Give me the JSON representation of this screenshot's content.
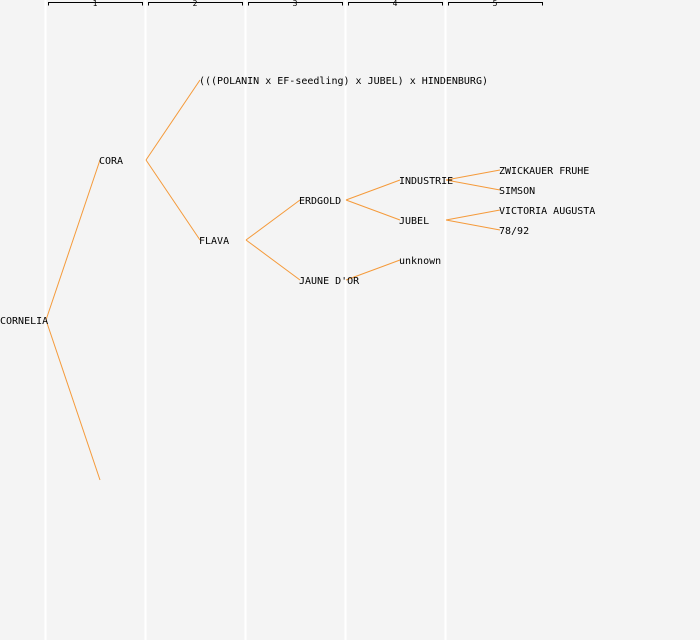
{
  "generations": [
    "1",
    "2",
    "3",
    "4",
    "5"
  ],
  "colors": {
    "background": "#f4f4f4",
    "column_divider": "#ffffff",
    "connector": "#f59a3a",
    "bracket": "#000000",
    "text": "#000000"
  },
  "nodes": {
    "root": "CORNELIA",
    "g1_top": "CORA",
    "g2_a": "(((POLANIN x EF-seedling) x JUBEL) x HINDENBURG)",
    "g2_b": "FLAVA",
    "g3_a": "ERDGOLD",
    "g3_b": "JAUNE D'OR",
    "g4_a": "INDUSTRIE",
    "g4_b": "JUBEL",
    "g4_c": "unknown",
    "g5_a": "ZWICKAUER FRUHE",
    "g5_b": "SIMSON",
    "g5_c": "VICTORIA AUGUSTA",
    "g5_d": "78/92"
  }
}
